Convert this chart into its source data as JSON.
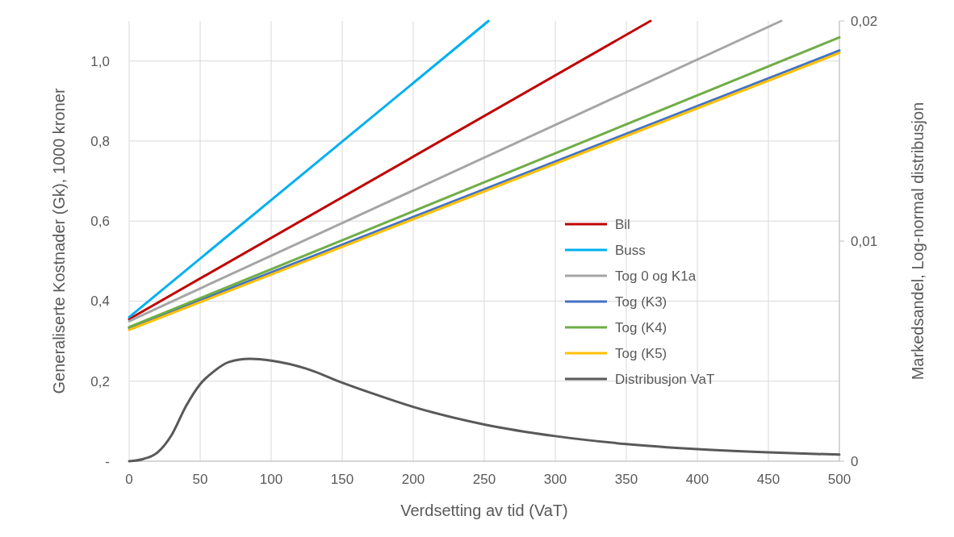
{
  "chart_data": {
    "type": "line",
    "xlabel": "Verdsetting av tid (VaT)",
    "ylabel": "Generaliserte Kostnader (Gk), 1000 kroner",
    "y2label": "Markedsandel, Log-normal distribusjon",
    "xlim": [
      0,
      500
    ],
    "xticks": [
      0,
      50,
      100,
      150,
      200,
      250,
      300,
      350,
      400,
      450,
      500
    ],
    "ylim": [
      0,
      1.1
    ],
    "yticks": [
      {
        "value": 0,
        "label": "-"
      },
      {
        "value": 0.2,
        "label": "0,2"
      },
      {
        "value": 0.4,
        "label": "0,4"
      },
      {
        "value": 0.6,
        "label": "0,6"
      },
      {
        "value": 0.8,
        "label": "0,8"
      },
      {
        "value": 1.0,
        "label": "1,0"
      }
    ],
    "y2lim": [
      0,
      0.02
    ],
    "y2ticks": [
      0,
      {
        "value": 0.01,
        "label": "0,01"
      },
      {
        "value": 0.02,
        "label": "0,02"
      }
    ],
    "grid": true,
    "legend": "right",
    "marker": "none",
    "series": [
      {
        "name": "Bil",
        "color": "#c00000",
        "x": [
          0,
          367
        ],
        "values": [
          0.355,
          1.1
        ]
      },
      {
        "name": "Buss",
        "color": "#00b0f0",
        "x": [
          0,
          253
        ],
        "values": [
          0.36,
          1.1
        ]
      },
      {
        "name": "Tog 0 og K1a",
        "color": "#a5a5a5",
        "x": [
          0,
          459
        ],
        "values": [
          0.35,
          1.1
        ]
      },
      {
        "name": "Tog (K3)",
        "color": "#4472c4",
        "x": [
          0,
          500
        ],
        "values": [
          0.333,
          1.026
        ]
      },
      {
        "name": "Tog (K4)",
        "color": "#70ad47",
        "x": [
          0,
          500
        ],
        "values": [
          0.335,
          1.059
        ]
      },
      {
        "name": "Tog (K5)",
        "color": "#ffc000",
        "x": [
          0,
          500
        ],
        "values": [
          0.328,
          1.02
        ]
      },
      {
        "name": "Distribusjon VaT",
        "color": "#595959",
        "axis": "y2",
        "x": [
          0,
          10,
          20,
          30,
          40,
          50,
          60,
          70,
          85,
          100,
          125,
          150,
          175,
          200,
          250,
          300,
          350,
          400,
          450,
          500
        ],
        "values": [
          0,
          0.0001,
          0.0004,
          0.0012,
          0.0025,
          0.0035,
          0.0041,
          0.0045,
          0.00465,
          0.00457,
          0.0042,
          0.00357,
          0.003,
          0.00247,
          0.00167,
          0.00114,
          0.00078,
          0.00055,
          0.0004,
          0.0003
        ]
      }
    ]
  }
}
